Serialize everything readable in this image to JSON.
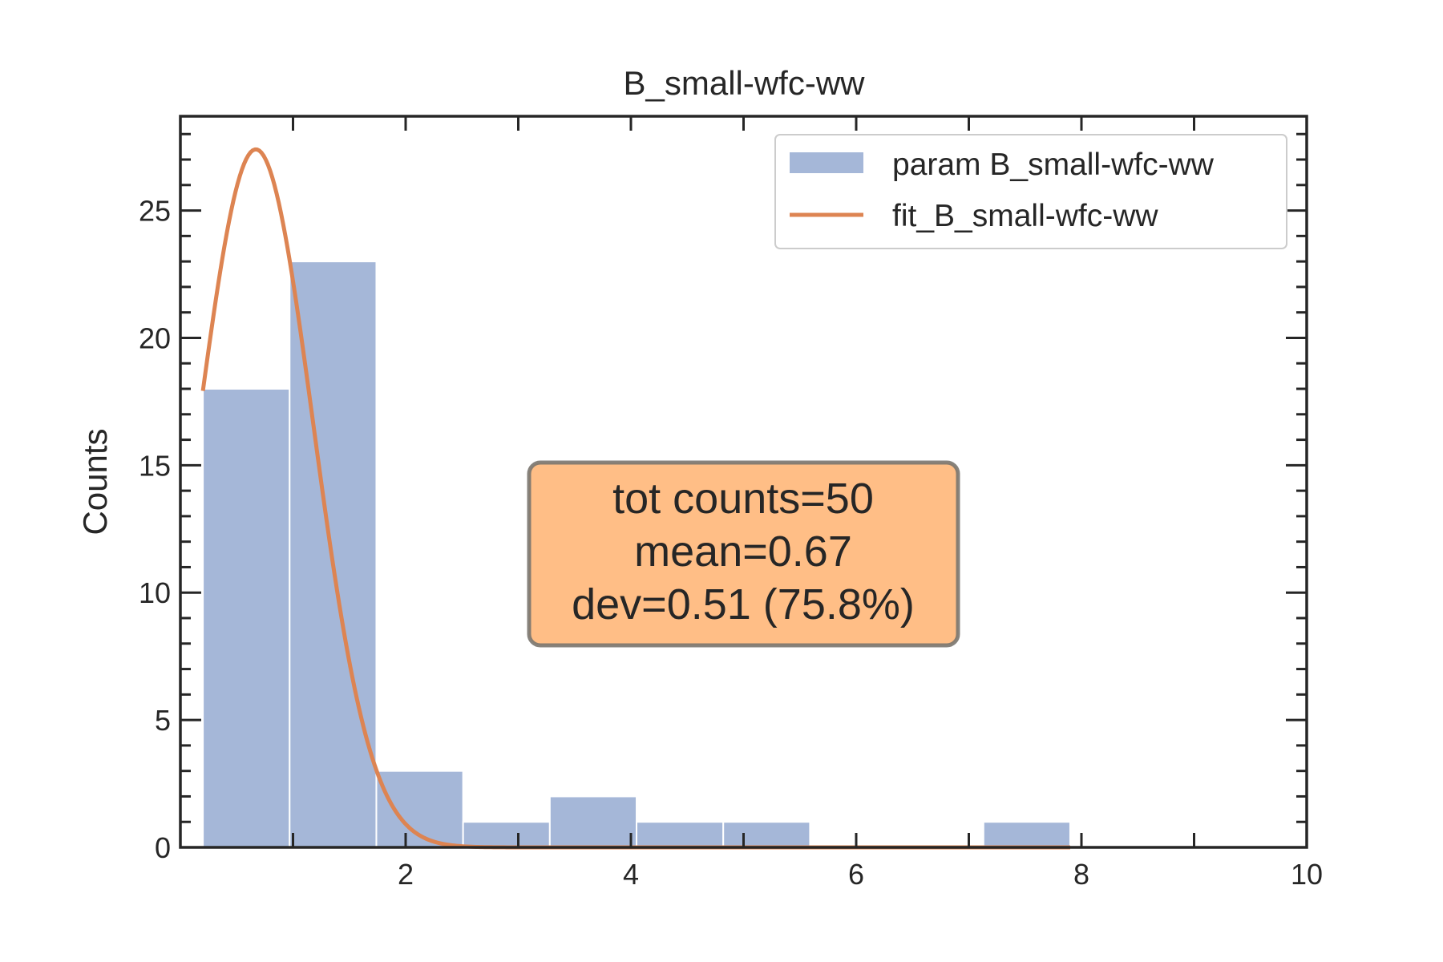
{
  "chart_data": {
    "type": "bar",
    "title": "B_small-wfc-ww",
    "xlabel": "",
    "ylabel": "Counts",
    "xlim": [
      0,
      10
    ],
    "ylim": [
      0,
      28.7
    ],
    "xticks": [
      2,
      4,
      6,
      8,
      10
    ],
    "yticks": [
      0,
      5,
      10,
      15,
      20,
      25
    ],
    "grid": false,
    "legend_position": "top-right",
    "bin_edges": [
      0.2,
      0.97,
      1.74,
      2.51,
      3.28,
      4.05,
      4.82,
      5.59,
      6.36,
      7.13,
      7.9
    ],
    "values": [
      18,
      23,
      3,
      1,
      2,
      1,
      1,
      0,
      0,
      1
    ],
    "bar_color": "#a5b7d8",
    "fit_color": "#dd8452",
    "fit": {
      "type": "gaussian",
      "mean": 0.67,
      "std": 0.51,
      "peak": 27.4,
      "x_range": [
        0.2,
        7.9
      ]
    },
    "legend": [
      {
        "label": "param B_small-wfc-ww",
        "kind": "bar"
      },
      {
        "label": "fit_B_small-wfc-ww",
        "kind": "line"
      }
    ],
    "annotation": {
      "lines": [
        "tot counts=50",
        "mean=0.67",
        "dev=0.51 (75.8%)"
      ],
      "box_color": "#ffbe86"
    }
  }
}
